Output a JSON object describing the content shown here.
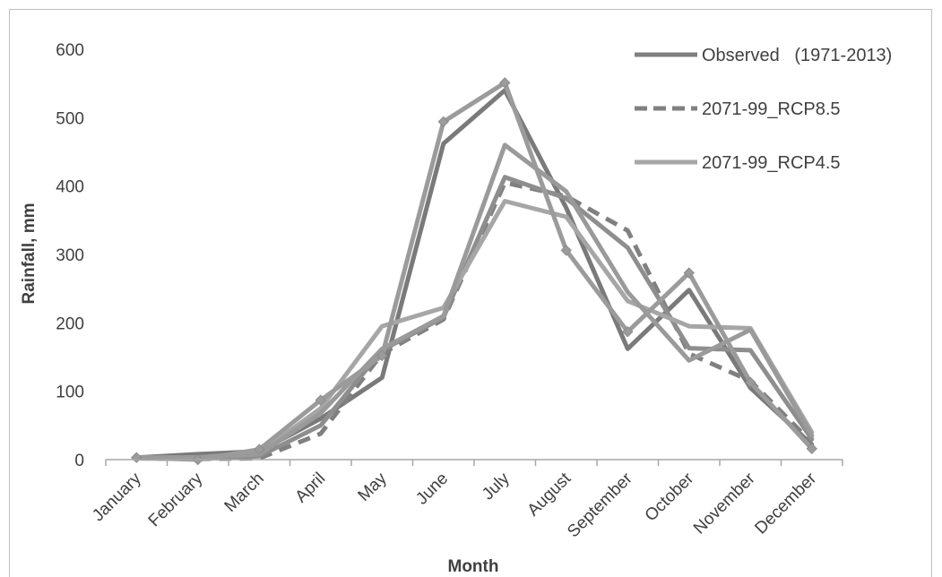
{
  "chart_data": {
    "type": "line",
    "categories": [
      "January",
      "February",
      "March",
      "April",
      "May",
      "June",
      "July",
      "August",
      "September",
      "October",
      "November",
      "December"
    ],
    "xlabel": "Month",
    "ylabel": "Rainfall, mm",
    "ylim": [
      0,
      600
    ],
    "yticks": [
      0,
      100,
      200,
      300,
      400,
      500,
      600
    ],
    "grid": false,
    "legend_position": "top-right",
    "legend": [
      {
        "label": "Observed   (1971-2013)",
        "color": "#7f7f7f",
        "dash": false
      },
      {
        "label": "2071-99_RCP8.5",
        "color": "#808080",
        "dash": true
      },
      {
        "label": "2071-99_RCP4.5",
        "color": "#a6a6a6",
        "dash": false
      }
    ],
    "series": [
      {
        "color": "#7a7a7a",
        "dash": false,
        "markers": false,
        "values": [
          3,
          8,
          12,
          60,
          120,
          462,
          540,
          368,
          162,
          248,
          105,
          22
        ]
      },
      {
        "color": "#808080",
        "dash": true,
        "markers": false,
        "values": [
          2,
          1,
          2,
          38,
          155,
          205,
          405,
          385,
          335,
          155,
          115,
          25
        ]
      },
      {
        "color": "#8e8e8e",
        "dash": false,
        "markers": false,
        "values": [
          2,
          1,
          5,
          50,
          160,
          208,
          413,
          382,
          310,
          163,
          160,
          30
        ]
      },
      {
        "color": "#a6a6a6",
        "dash": false,
        "markers": false,
        "values": [
          3,
          3,
          10,
          75,
          195,
          222,
          378,
          355,
          232,
          195,
          192,
          40
        ]
      },
      {
        "color": "#9a9a9a",
        "dash": false,
        "markers": false,
        "values": [
          3,
          3,
          8,
          68,
          162,
          210,
          460,
          392,
          245,
          145,
          190,
          35
        ]
      },
      {
        "color": "#9b9b9b",
        "dash": false,
        "markers": true,
        "values": [
          3,
          0,
          15,
          87,
          152,
          494,
          551,
          306,
          187,
          273,
          113,
          16
        ]
      }
    ]
  }
}
